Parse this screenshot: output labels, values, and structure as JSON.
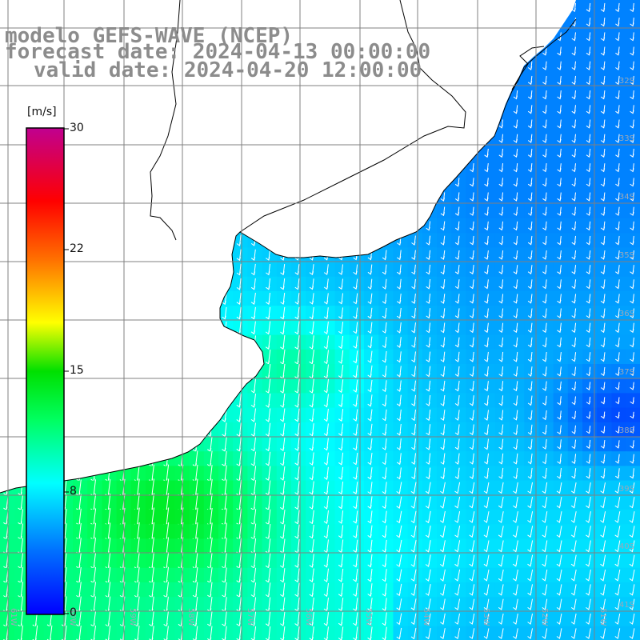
{
  "title": {
    "line1": "modelo GEFS-WAVE (NCEP)",
    "line2": "forecast date: 2024-04-13 00:00:00",
    "line3": "valid date: 2024-04-20 12:00:00"
  },
  "colorbar": {
    "unit": "[m/s]",
    "ticks": [
      "30",
      "22",
      "15",
      "8",
      "0"
    ],
    "range": [
      0,
      30
    ],
    "colors": [
      "#0000ff",
      "#00a0ff",
      "#00ffff",
      "#00ff00",
      "#ffff00",
      "#ff8000",
      "#ff0000",
      "#c00080"
    ]
  },
  "map": {
    "lat_labels": [
      "32S",
      "33S",
      "34S",
      "35S",
      "36S",
      "37S",
      "38S",
      "39S",
      "40S",
      "41S"
    ],
    "lon_labels": [
      "61W",
      "60W",
      "59W",
      "58W",
      "57W",
      "56W",
      "55W",
      "54W",
      "53W",
      "52W",
      "51W"
    ],
    "land_color": "#ffffff",
    "coast_color": "#000000",
    "grid_color": "#808080",
    "arrow_color": "#ffffff"
  }
}
